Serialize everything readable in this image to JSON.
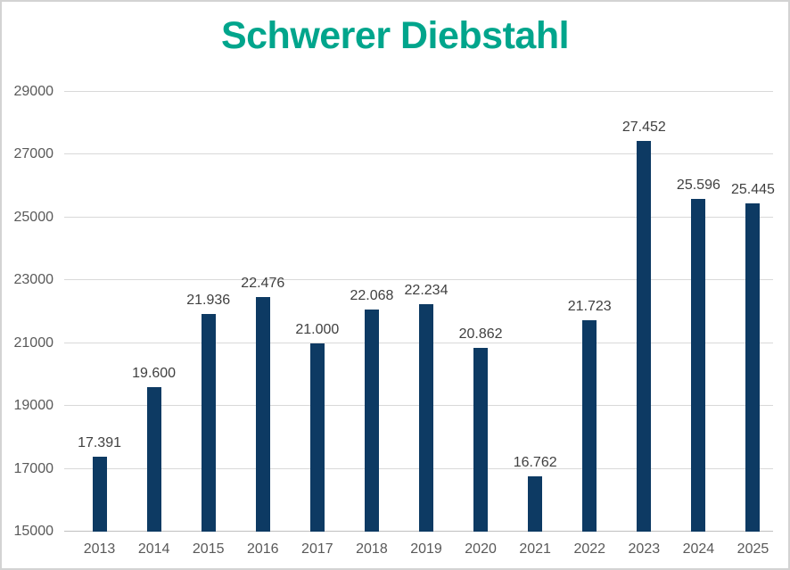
{
  "chart_data": {
    "type": "bar",
    "title": "Schwerer Diebstahl",
    "categories": [
      "2013",
      "2014",
      "2015",
      "2016",
      "2017",
      "2018",
      "2019",
      "2020",
      "2021",
      "2022",
      "2023",
      "2024",
      "2025"
    ],
    "values": [
      17391,
      19600,
      21936,
      22476,
      21000,
      22068,
      22234,
      20862,
      16762,
      21723,
      27452,
      25596,
      25445
    ],
    "data_labels": [
      "17.391",
      "19.600",
      "21.936",
      "22.476",
      "21.000",
      "22.068",
      "22.234",
      "20.862",
      "16.762",
      "21.723",
      "27.452",
      "25.596",
      "25.445"
    ],
    "xlabel": "",
    "ylabel": "",
    "ylim": [
      15000,
      29000
    ],
    "yticks": [
      15000,
      17000,
      19000,
      21000,
      23000,
      25000,
      27000,
      29000
    ],
    "ytick_labels": [
      "15000",
      "17000",
      "19000",
      "21000",
      "23000",
      "25000",
      "27000",
      "29000"
    ],
    "grid": true,
    "legend": false,
    "data_labels_shown": true
  },
  "colors": {
    "title": "#00A58C",
    "bar": "#0D3A63",
    "grid_line": "#D9D9D9",
    "axis_line": "#BFBFBF",
    "axis_tick_label": "#595959",
    "data_label": "#404040",
    "frame_border": "#D3D3D3",
    "background": "#FFFFFF"
  }
}
